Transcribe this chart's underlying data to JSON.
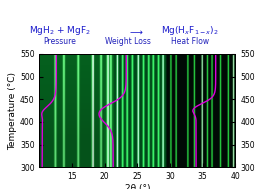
{
  "title_color": "#1a1acc",
  "label_color": "#2222bb",
  "curve_color": "#dd00dd",
  "xlabel": "2θ (°)",
  "ylabel": "Temperature (°C)",
  "xmin": 10,
  "xmax": 40,
  "ymin": 300,
  "ymax": 550,
  "yticks": [
    300,
    350,
    400,
    450,
    500,
    550
  ],
  "xticks": [
    15,
    20,
    25,
    30,
    35,
    40
  ],
  "region1_end": 21.5,
  "region2_end": 29.5,
  "peaks_left": [
    12.5,
    13.8,
    16.0,
    18.2,
    19.5,
    20.5,
    21.0
  ],
  "peaks_mid": [
    22.0,
    22.8,
    23.5,
    24.3,
    25.2,
    26.0,
    26.8,
    27.5,
    28.3,
    29.0
  ],
  "peaks_right": [
    30.2,
    31.0,
    32.8,
    33.8,
    35.0,
    35.8,
    36.5,
    37.8,
    39.0,
    39.8
  ],
  "press_x0": 11.5,
  "press_t0": 430,
  "press_scale": 20,
  "press_amp": 1.8,
  "press_x0b": 11.5,
  "press_t0b": 415,
  "press_scaleb": 12,
  "press_ampb": 1.2,
  "wt_x0": 22.3,
  "wt_t0": 440,
  "wt_scale": 18,
  "wt_amp": 2.5,
  "heat_x0": 35.5,
  "heat_t0": 440,
  "heat_scale": 15,
  "heat_amp": 2.2,
  "heat_x0b": 35.5,
  "heat_t0b": 420,
  "heat_scaleb": 10,
  "heat_ampb": 1.4
}
